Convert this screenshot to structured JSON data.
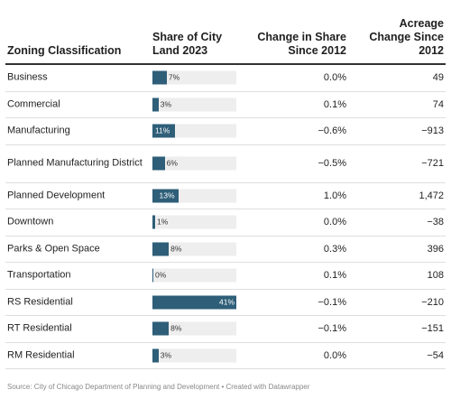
{
  "chart_data": {
    "type": "table",
    "columns": [
      "Zoning Classification",
      "Share of City Land 2023",
      "Change in Share Since 2012",
      "Acreage Change Since 2012"
    ],
    "header_lines": {
      "c1": [
        "Zoning Classification"
      ],
      "c2": [
        "Share of City",
        "Land 2023"
      ],
      "c3": [
        "Change in Share",
        "Since 2012"
      ],
      "c4": [
        "Acreage",
        "Change Since",
        "2012"
      ]
    },
    "bar_max": 41,
    "rows": [
      {
        "name": "Business",
        "share": 7,
        "share_label": "7%",
        "change": "0.0%",
        "acreage": "49"
      },
      {
        "name": "Commercial",
        "share": 3,
        "share_label": "3%",
        "change": "0.1%",
        "acreage": "74"
      },
      {
        "name": "Manufacturing",
        "share": 11,
        "share_label": "11%",
        "change": "−0.6%",
        "acreage": "−913"
      },
      {
        "name": "Planned Manufacturing District",
        "share": 6,
        "share_label": "6%",
        "change": "−0.5%",
        "acreage": "−721"
      },
      {
        "name": "Planned Development",
        "share": 13,
        "share_label": "13%",
        "change": "1.0%",
        "acreage": "1,472"
      },
      {
        "name": "Downtown",
        "share": 1,
        "share_label": "1%",
        "change": "0.0%",
        "acreage": "−38"
      },
      {
        "name": "Parks & Open Space",
        "share": 8,
        "share_label": "8%",
        "change": "0.3%",
        "acreage": "396"
      },
      {
        "name": "Transportation",
        "share": 0,
        "share_label": "0%",
        "change": "0.1%",
        "acreage": "108"
      },
      {
        "name": "RS Residential",
        "share": 41,
        "share_label": "41%",
        "change": "−0.1%",
        "acreage": "−210"
      },
      {
        "name": "RT Residential",
        "share": 8,
        "share_label": "8%",
        "change": "−0.1%",
        "acreage": "−151"
      },
      {
        "name": "RM Residential",
        "share": 3,
        "share_label": "3%",
        "change": "0.0%",
        "acreage": "−54"
      }
    ],
    "bar_color": "#2e5e78",
    "bar_bg_color": "#eeeeee"
  },
  "source": "Source: City of Chicago Department of Planning and Development • Created with Datawrapper"
}
